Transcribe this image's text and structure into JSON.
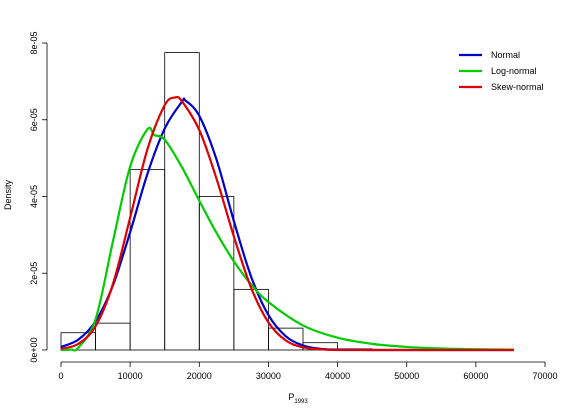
{
  "chart_data": {
    "type": "histogram",
    "title": "",
    "xlabel": "P",
    "xlabel_subscript": "1993",
    "ylabel": "Density",
    "xlim": [
      0,
      70000
    ],
    "ylim": [
      0,
      8e-05
    ],
    "xticks": [
      0,
      10000,
      20000,
      30000,
      40000,
      50000,
      60000,
      70000
    ],
    "xtick_labels": [
      "0",
      "10000",
      "20000",
      "30000",
      "40000",
      "50000",
      "60000",
      "70000"
    ],
    "yticks": [
      0,
      2e-05,
      4e-05,
      6e-05,
      8e-05
    ],
    "ytick_labels": [
      "0e+00",
      "2e-05",
      "4e-05",
      "6e-05",
      "8e-05"
    ],
    "grid": false,
    "legend_position": "top-right",
    "bins": [
      {
        "x0": 0,
        "x1": 5000,
        "density": 4.5e-06
      },
      {
        "x0": 5000,
        "x1": 10000,
        "density": 7e-06
      },
      {
        "x0": 10000,
        "x1": 15000,
        "density": 4.7e-05
      },
      {
        "x0": 15000,
        "x1": 20000,
        "density": 7.75e-05
      },
      {
        "x0": 20000,
        "x1": 25000,
        "density": 4e-05
      },
      {
        "x0": 25000,
        "x1": 30000,
        "density": 1.58e-05
      },
      {
        "x0": 30000,
        "x1": 35000,
        "density": 5.7e-06
      },
      {
        "x0": 35000,
        "x1": 40000,
        "density": 1.9e-06
      },
      {
        "x0": 40000,
        "x1": 45000,
        "density": 3e-07
      },
      {
        "x0": 45000,
        "x1": 50000,
        "density": 1e-07
      },
      {
        "x0": 50000,
        "x1": 55000,
        "density": 1e-07
      },
      {
        "x0": 55000,
        "x1": 60000,
        "density": 1e-07
      },
      {
        "x0": 60000,
        "x1": 65000,
        "density": 1e-07
      }
    ],
    "series": [
      {
        "name": "Normal",
        "color": "#0000cc",
        "x": [
          0,
          2500,
          5000,
          7500,
          10000,
          12500,
          15000,
          17500,
          18000,
          20000,
          22500,
          25000,
          27500,
          30000,
          32500,
          35000,
          37500,
          40000,
          45000,
          50000,
          55000,
          60000,
          65500
        ],
        "y": [
          8e-07,
          2.7e-06,
          7.5e-06,
          1.68e-05,
          3.07e-05,
          4.59e-05,
          5.77e-05,
          6.47e-05,
          6.5e-05,
          6.1e-05,
          4.96e-05,
          3.36e-05,
          1.91e-05,
          9.1e-06,
          3.6e-06,
          1.2e-06,
          3e-07,
          1e-07,
          0,
          0,
          0,
          0,
          0
        ]
      },
      {
        "name": "Log-normal",
        "color": "#00cc00",
        "x": [
          0,
          1500,
          2500,
          5000,
          7500,
          10000,
          12500,
          13500,
          15000,
          17500,
          20000,
          22500,
          25000,
          27500,
          30000,
          35000,
          40000,
          45000,
          50000,
          55000,
          60000,
          65500
        ],
        "y": [
          0,
          1e-07,
          6e-07,
          8e-06,
          2.82e-05,
          4.78e-05,
          5.75e-05,
          5.6e-05,
          5.48e-05,
          4.76e-05,
          3.89e-05,
          3.05e-05,
          2.31e-05,
          1.71e-05,
          1.25e-05,
          6.4e-06,
          3.2e-06,
          1.6e-06,
          8e-07,
          4e-07,
          2e-07,
          1e-07
        ]
      },
      {
        "name": "Skew-normal",
        "color": "#dd0000",
        "x": [
          0,
          2500,
          5000,
          7500,
          10000,
          12500,
          15000,
          16500,
          17500,
          20000,
          22500,
          25000,
          27500,
          30000,
          32500,
          35000,
          37500,
          40000,
          45000,
          50000,
          55000,
          60000,
          65500
        ],
        "y": [
          3e-07,
          1.6e-06,
          6.2e-06,
          1.71e-05,
          3.45e-05,
          5.23e-05,
          6.38e-05,
          6.58e-05,
          6.48e-05,
          5.73e-05,
          4.46e-05,
          2.96e-05,
          1.62e-05,
          7.2e-06,
          2.5e-06,
          7e-07,
          2e-07,
          0,
          0,
          0,
          0,
          0,
          0
        ]
      }
    ]
  }
}
